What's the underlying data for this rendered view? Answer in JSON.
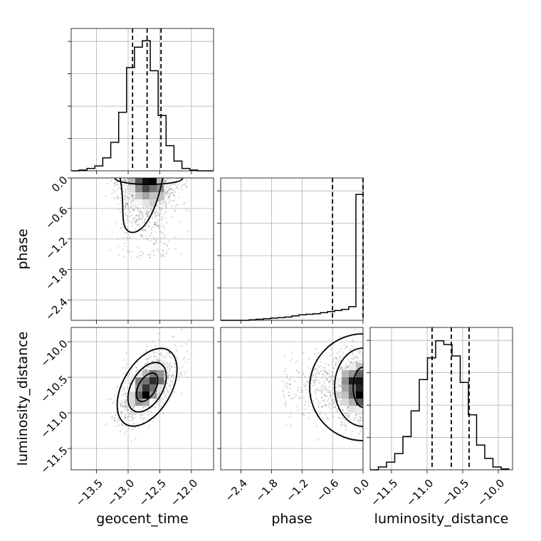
{
  "chart_data": {
    "type": "scatter",
    "parameters": [
      "geocent_time",
      "phase",
      "luminosity_distance"
    ],
    "axes": {
      "geocent_time": {
        "range": [
          -13.9,
          -11.65
        ],
        "ticks": [
          -13.5,
          -13.0,
          -12.5,
          -12.0
        ],
        "tick_labels": [
          "−13.5",
          "−13.0",
          "−12.5",
          "−12.0"
        ]
      },
      "phase": {
        "range": [
          -2.8,
          0.0
        ],
        "ticks": [
          -2.4,
          -1.8,
          -1.2,
          -0.6,
          0.0
        ],
        "tick_labels": [
          "−2.4",
          "−1.8",
          "−1.2",
          "−0.6",
          "0.0"
        ]
      },
      "luminosity_distance": {
        "range": [
          -11.8,
          -9.8
        ],
        "ticks": [
          -11.5,
          -11.0,
          -10.5,
          -10.0
        ],
        "tick_labels": [
          "−11.5",
          "−11.0",
          "−10.5",
          "−10.0"
        ]
      }
    },
    "histograms": {
      "geocent_time": {
        "bin_edges": [
          -13.9,
          -13.775,
          -13.65,
          -13.525,
          -13.4,
          -13.275,
          -13.15,
          -13.025,
          -12.9,
          -12.775,
          -12.65,
          -12.525,
          -12.4,
          -12.275,
          -12.15,
          -12.025,
          -11.9,
          -11.775,
          -11.65
        ],
        "counts": [
          0,
          1,
          3,
          6,
          16,
          35,
          72,
          127,
          152,
          160,
          123,
          68,
          31,
          12,
          3,
          1,
          0,
          0
        ],
        "ylim": [
          0,
          175
        ],
        "quantiles": [
          -12.93,
          -12.7,
          -12.48
        ]
      },
      "phase": {
        "bin_edges": [
          -2.8,
          -2.66,
          -2.52,
          -2.38,
          -2.24,
          -2.1,
          -1.96,
          -1.82,
          -1.68,
          -1.54,
          -1.4,
          -1.26,
          -1.12,
          -0.98,
          -0.84,
          -0.7,
          -0.56,
          -0.42,
          -0.28,
          -0.14,
          0.0
        ],
        "counts": [
          0,
          0,
          0,
          0,
          1,
          2,
          3,
          4,
          5,
          6,
          8,
          10,
          11,
          12,
          14,
          16,
          18,
          20,
          25,
          230
        ],
        "ylim": [
          0,
          260
        ],
        "quantiles": [
          -0.6,
          0.0
        ]
      },
      "luminosity_distance": {
        "bin_edges": [
          -11.8,
          -11.685,
          -11.57,
          -11.455,
          -11.34,
          -11.225,
          -11.11,
          -10.995,
          -10.88,
          -10.765,
          -10.65,
          -10.535,
          -10.42,
          -10.305,
          -10.19,
          -10.075,
          -9.96,
          -9.845
        ],
        "counts": [
          0,
          3,
          8,
          17,
          35,
          62,
          95,
          118,
          136,
          132,
          120,
          92,
          58,
          26,
          12,
          3,
          1
        ],
        "ylim": [
          0,
          150
        ],
        "quantiles": [
          -10.93,
          -10.66,
          -10.41
        ]
      }
    },
    "samples": {
      "geocent_time": {
        "mean": -12.7,
        "sd": 0.22
      },
      "phase": {
        "peak": 0.0,
        "scale": 0.35
      },
      "luminosity_distance": {
        "mean": -10.64,
        "sd": 0.24
      },
      "correlation_geocent_luminosity": 0.55
    },
    "grid": true
  }
}
